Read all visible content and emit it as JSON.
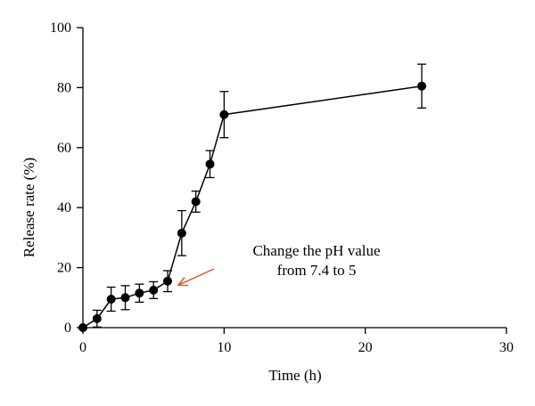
{
  "chart_data": {
    "type": "line",
    "xlabel": "Time (h)",
    "ylabel": "Release rate (%)",
    "xlim": [
      0,
      30
    ],
    "ylim": [
      0,
      100
    ],
    "xticks": [
      0,
      10,
      20,
      30
    ],
    "yticks": [
      0,
      20,
      40,
      60,
      80,
      100
    ],
    "grid": false,
    "series": [
      {
        "x": [
          0,
          1,
          2,
          3,
          4,
          5,
          6,
          7,
          8,
          9,
          10,
          24
        ],
        "y": [
          0,
          3,
          9.5,
          10,
          11.5,
          12.5,
          15.5,
          31.5,
          42,
          54.5,
          71,
          80.5
        ],
        "err": [
          0,
          2.8,
          4,
          4,
          3,
          2.8,
          3.5,
          7.5,
          3.5,
          4.5,
          7.7,
          7.3
        ]
      }
    ],
    "annotations": [
      {
        "lines": [
          "Change the pH value",
          "from 7.4 to 5"
        ],
        "points_to": {
          "x": 6.5,
          "y": 13
        },
        "arrow_color": "#e05a26"
      }
    ]
  }
}
